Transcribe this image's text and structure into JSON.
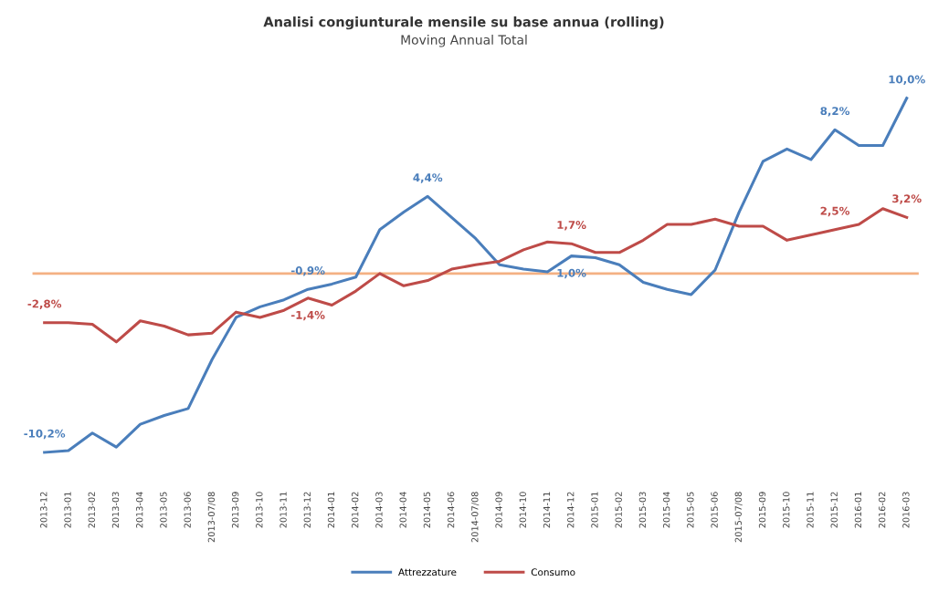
{
  "chart_data": {
    "type": "line",
    "title": "Analisi congiunturale mensile su base annua (rolling)",
    "subtitle": "Moving Annual Total",
    "categories": [
      "2013-12",
      "2013-01",
      "2013-02",
      "2013-03",
      "2013-04",
      "2013-05",
      "2013-06",
      "2013-07/08",
      "2013-09",
      "2013-10",
      "2013-11",
      "2013-12",
      "2014-01",
      "2014-02",
      "2014-03",
      "2014-04",
      "2014-05",
      "2014-06",
      "2014-07/08",
      "2014-09",
      "2014-10",
      "2014-11",
      "2014-12",
      "2015-01",
      "2015-02",
      "2015-03",
      "2015-04",
      "2015-05",
      "2015-06",
      "2015-07/08",
      "2015-09",
      "2015-10",
      "2015-11",
      "2015-12",
      "2016-01",
      "2016-02",
      "2016-03"
    ],
    "series": [
      {
        "name": "Attrezzature",
        "color": "#4a7ebb",
        "values": [
          -10.2,
          -10.1,
          -9.1,
          -9.9,
          -8.6,
          -8.1,
          -7.7,
          -4.9,
          -2.5,
          -1.9,
          -1.5,
          -0.9,
          -0.6,
          -0.2,
          2.5,
          3.5,
          4.4,
          3.2,
          2.0,
          0.5,
          0.25,
          0.1,
          1.0,
          0.9,
          0.5,
          -0.5,
          -0.9,
          -1.2,
          0.2,
          3.5,
          6.4,
          7.1,
          6.5,
          8.2,
          7.3,
          7.3,
          10.0
        ],
        "value_labels": [
          "-10,2%",
          null,
          null,
          null,
          null,
          null,
          null,
          null,
          null,
          null,
          null,
          "-0,9%",
          null,
          null,
          null,
          null,
          "4,4%",
          null,
          null,
          null,
          null,
          null,
          "1,0%",
          null,
          null,
          null,
          null,
          null,
          null,
          null,
          null,
          null,
          null,
          "8,2%",
          null,
          null,
          "10,0%"
        ]
      },
      {
        "name": "Consumo",
        "color": "#be4b48",
        "values": [
          -2.8,
          -2.8,
          -2.9,
          -3.9,
          -2.7,
          -3.0,
          -3.5,
          -3.4,
          -2.2,
          -2.5,
          -2.1,
          -1.4,
          -1.8,
          -1.0,
          0.0,
          -0.7,
          -0.4,
          0.25,
          0.5,
          0.7,
          1.35,
          1.8,
          1.7,
          1.2,
          1.2,
          1.9,
          2.8,
          2.8,
          3.1,
          2.7,
          2.7,
          1.9,
          2.2,
          2.5,
          2.8,
          3.7,
          3.2
        ],
        "value_labels": [
          "-2,8%",
          null,
          null,
          null,
          null,
          null,
          null,
          null,
          null,
          null,
          null,
          "-1,4%",
          null,
          null,
          null,
          null,
          null,
          null,
          null,
          null,
          null,
          null,
          "1,7%",
          null,
          null,
          null,
          null,
          null,
          null,
          null,
          null,
          null,
          null,
          "2,5%",
          null,
          null,
          "3,2%"
        ]
      }
    ],
    "ref_lines": [
      {
        "axis": "y",
        "value": 0,
        "color": "#f4b183"
      }
    ],
    "legend": "bottom",
    "grid": false,
    "marker": "none",
    "line_style": "solid",
    "tick_labels": "x"
  }
}
